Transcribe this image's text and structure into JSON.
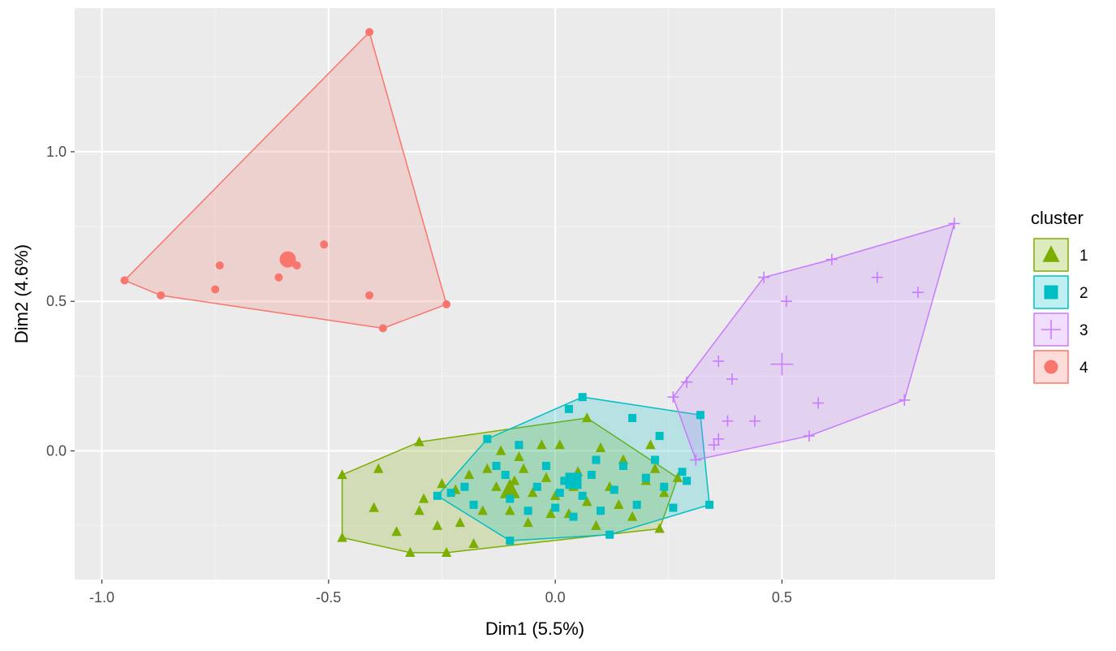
{
  "chart_data": {
    "type": "scatter",
    "xlabel": "Dim1 (5.5%)",
    "ylabel": "Dim2 (4.6%)",
    "xlim": [
      -1.06,
      0.97
    ],
    "ylim": [
      -0.43,
      1.48
    ],
    "x_ticks": [
      {
        "value": -1.0,
        "label": "-1.0"
      },
      {
        "value": -0.5,
        "label": "-0.5"
      },
      {
        "value": 0.0,
        "label": "0.0"
      },
      {
        "value": 0.5,
        "label": "0.5"
      }
    ],
    "y_ticks": [
      {
        "value": 0.0,
        "label": "0.0"
      },
      {
        "value": 0.5,
        "label": "0.5"
      },
      {
        "value": 1.0,
        "label": "1.0"
      }
    ],
    "grid": true,
    "background": "#ebebeb",
    "legend": {
      "title": "cluster",
      "position": "right",
      "entries": [
        {
          "label": "1",
          "color": "#7cae00",
          "shape": "triangle"
        },
        {
          "label": "2",
          "color": "#00bfc4",
          "shape": "square"
        },
        {
          "label": "3",
          "color": "#c77cff",
          "shape": "plus"
        },
        {
          "label": "4",
          "color": "#f8766d",
          "shape": "circle"
        }
      ]
    },
    "series": [
      {
        "name": "1",
        "color": "#7cae00",
        "shape": "triangle",
        "hull": [
          [
            -0.47,
            -0.08
          ],
          [
            -0.3,
            0.03
          ],
          [
            0.07,
            0.11
          ],
          [
            0.27,
            -0.09
          ],
          [
            0.23,
            -0.26
          ],
          [
            -0.24,
            -0.34
          ],
          [
            -0.32,
            -0.34
          ],
          [
            -0.47,
            -0.29
          ]
        ],
        "centroid": [
          -0.1,
          -0.13
        ],
        "points": [
          [
            -0.47,
            -0.08
          ],
          [
            -0.3,
            0.03
          ],
          [
            0.07,
            0.11
          ],
          [
            0.27,
            -0.09
          ],
          [
            0.23,
            -0.26
          ],
          [
            -0.24,
            -0.34
          ],
          [
            -0.32,
            -0.34
          ],
          [
            -0.47,
            -0.29
          ],
          [
            -0.39,
            -0.06
          ],
          [
            -0.4,
            -0.19
          ],
          [
            -0.35,
            -0.27
          ],
          [
            -0.3,
            -0.2
          ],
          [
            -0.29,
            -0.16
          ],
          [
            -0.26,
            -0.25
          ],
          [
            -0.22,
            -0.13
          ],
          [
            -0.21,
            -0.24
          ],
          [
            -0.19,
            -0.08
          ],
          [
            -0.18,
            -0.31
          ],
          [
            -0.15,
            -0.06
          ],
          [
            -0.12,
            0.0
          ],
          [
            -0.1,
            -0.2
          ],
          [
            -0.09,
            -0.1
          ],
          [
            -0.08,
            -0.02
          ],
          [
            -0.06,
            -0.24
          ],
          [
            -0.05,
            -0.14
          ],
          [
            -0.03,
            0.02
          ],
          [
            -0.02,
            -0.09
          ],
          [
            0.0,
            -0.15
          ],
          [
            0.01,
            0.02
          ],
          [
            0.03,
            -0.21
          ],
          [
            0.05,
            -0.07
          ],
          [
            0.07,
            -0.17
          ],
          [
            0.09,
            -0.25
          ],
          [
            0.1,
            0.01
          ],
          [
            0.12,
            -0.12
          ],
          [
            0.14,
            -0.18
          ],
          [
            0.15,
            -0.03
          ],
          [
            0.17,
            -0.22
          ],
          [
            0.2,
            -0.1
          ],
          [
            0.21,
            0.02
          ],
          [
            0.22,
            -0.06
          ],
          [
            0.24,
            -0.14
          ],
          [
            -0.25,
            -0.11
          ],
          [
            -0.16,
            -0.2
          ],
          [
            -0.13,
            -0.12
          ],
          [
            -0.07,
            -0.06
          ],
          [
            -0.01,
            -0.21
          ],
          [
            0.04,
            -0.12
          ]
        ]
      },
      {
        "name": "2",
        "color": "#00bfc4",
        "shape": "square",
        "hull": [
          [
            -0.26,
            -0.15
          ],
          [
            -0.15,
            0.04
          ],
          [
            0.06,
            0.18
          ],
          [
            0.32,
            0.12
          ],
          [
            0.34,
            -0.18
          ],
          [
            0.12,
            -0.28
          ],
          [
            -0.1,
            -0.3
          ]
        ],
        "centroid": [
          0.04,
          -0.1
        ],
        "points": [
          [
            -0.26,
            -0.15
          ],
          [
            -0.15,
            0.04
          ],
          [
            0.06,
            0.18
          ],
          [
            0.32,
            0.12
          ],
          [
            0.34,
            -0.18
          ],
          [
            0.12,
            -0.28
          ],
          [
            -0.1,
            -0.3
          ],
          [
            0.03,
            0.14
          ],
          [
            0.17,
            0.11
          ],
          [
            0.23,
            0.05
          ],
          [
            0.29,
            -0.1
          ],
          [
            -0.23,
            -0.14
          ],
          [
            -0.2,
            -0.12
          ],
          [
            -0.18,
            -0.18
          ],
          [
            -0.13,
            -0.05
          ],
          [
            -0.1,
            -0.16
          ],
          [
            -0.08,
            0.02
          ],
          [
            -0.06,
            -0.2
          ],
          [
            -0.04,
            -0.12
          ],
          [
            -0.02,
            -0.05
          ],
          [
            0.0,
            -0.19
          ],
          [
            0.02,
            -0.1
          ],
          [
            0.04,
            -0.22
          ],
          [
            0.06,
            -0.15
          ],
          [
            0.08,
            -0.08
          ],
          [
            0.1,
            -0.2
          ],
          [
            0.13,
            -0.13
          ],
          [
            0.15,
            -0.05
          ],
          [
            0.18,
            -0.18
          ],
          [
            0.2,
            -0.09
          ],
          [
            0.22,
            -0.03
          ],
          [
            0.24,
            -0.12
          ],
          [
            0.26,
            -0.19
          ],
          [
            0.28,
            -0.07
          ],
          [
            -0.11,
            -0.08
          ],
          [
            0.01,
            -0.14
          ],
          [
            0.09,
            -0.03
          ]
        ]
      },
      {
        "name": "3",
        "color": "#c77cff",
        "shape": "plus",
        "hull": [
          [
            0.26,
            0.18
          ],
          [
            0.46,
            0.58
          ],
          [
            0.61,
            0.64
          ],
          [
            0.88,
            0.76
          ],
          [
            0.77,
            0.17
          ],
          [
            0.56,
            0.05
          ],
          [
            0.31,
            -0.03
          ]
        ],
        "centroid": [
          0.5,
          0.29
        ],
        "points": [
          [
            0.26,
            0.18
          ],
          [
            0.46,
            0.58
          ],
          [
            0.61,
            0.64
          ],
          [
            0.88,
            0.76
          ],
          [
            0.77,
            0.17
          ],
          [
            0.56,
            0.05
          ],
          [
            0.31,
            -0.03
          ],
          [
            0.71,
            0.58
          ],
          [
            0.8,
            0.53
          ],
          [
            0.51,
            0.5
          ],
          [
            0.36,
            0.3
          ],
          [
            0.29,
            0.23
          ],
          [
            0.39,
            0.24
          ],
          [
            0.58,
            0.16
          ],
          [
            0.44,
            0.1
          ],
          [
            0.38,
            0.1
          ],
          [
            0.36,
            0.04
          ],
          [
            0.35,
            0.02
          ]
        ]
      },
      {
        "name": "4",
        "color": "#f8766d",
        "shape": "circle",
        "hull": [
          [
            -0.95,
            0.57
          ],
          [
            -0.41,
            1.4
          ],
          [
            -0.24,
            0.49
          ],
          [
            -0.38,
            0.41
          ],
          [
            -0.87,
            0.52
          ]
        ],
        "centroid": [
          -0.59,
          0.64
        ],
        "points": [
          [
            -0.95,
            0.57
          ],
          [
            -0.41,
            1.4
          ],
          [
            -0.24,
            0.49
          ],
          [
            -0.38,
            0.41
          ],
          [
            -0.87,
            0.52
          ],
          [
            -0.74,
            0.62
          ],
          [
            -0.75,
            0.54
          ],
          [
            -0.61,
            0.58
          ],
          [
            -0.58,
            0.63
          ],
          [
            -0.57,
            0.62
          ],
          [
            -0.51,
            0.69
          ],
          [
            -0.41,
            0.52
          ]
        ]
      }
    ]
  }
}
